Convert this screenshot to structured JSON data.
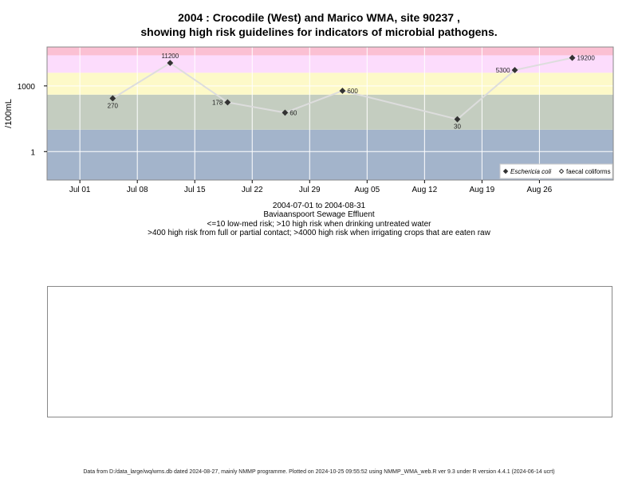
{
  "chart_data": {
    "type": "scatter",
    "title": "2004 : Crocodile (West) and Marico WMA, site 90237 ,",
    "subtitle": "showing high risk guidelines for indicators of microbial pathogens.",
    "ylabel": "/100mL",
    "y_scale": "log",
    "y_ticks": [
      1,
      1000
    ],
    "y_tick_labels": [
      "1",
      "1000"
    ],
    "ylim": [
      0.05,
      60000
    ],
    "x_axis": "date",
    "xlim": [
      "2004-06-27",
      "2004-09-04"
    ],
    "x_ticks": [
      "2004-07-01",
      "2004-07-08",
      "2004-07-15",
      "2004-07-22",
      "2004-07-29",
      "2004-08-05",
      "2004-08-12",
      "2004-08-19",
      "2004-08-26"
    ],
    "x_tick_labels": [
      "Jul 01",
      "Jul 08",
      "Jul 15",
      "Jul 22",
      "Jul 29",
      "Aug 05",
      "Aug 12",
      "Aug 19",
      "Aug 26"
    ],
    "grid": true,
    "bands": [
      {
        "from": 0.05,
        "to": 10,
        "color": "#a3b4cb"
      },
      {
        "from": 10,
        "to": 400,
        "color": "#c4cdc0"
      },
      {
        "from": 400,
        "to": 4000,
        "color": "#fdf9c8"
      },
      {
        "from": 4000,
        "to": 25000,
        "color": "#fcdcfc"
      },
      {
        "from": 25000,
        "to": 60000,
        "color": "#fbc0d3"
      }
    ],
    "series": [
      {
        "name": "Eschericia coli",
        "marker": "filled-diamond",
        "color": "#333333",
        "line_color": "#dddddd",
        "x": [
          "2004-07-05",
          "2004-07-12",
          "2004-07-19",
          "2004-07-26",
          "2004-08-02",
          "2004-08-16",
          "2004-08-23",
          "2004-08-30"
        ],
        "y": [
          270,
          11200,
          178,
          60,
          600,
          30,
          5300,
          19200
        ],
        "labels": [
          "270",
          "11200",
          "178",
          "60",
          "600",
          "30",
          "5300",
          "19200"
        ],
        "label_pos": [
          "below",
          "above",
          "left",
          "right",
          "right",
          "below",
          "left",
          "right"
        ]
      }
    ],
    "legend": {
      "placement": "bottom-right",
      "entries": [
        {
          "label": "Eschericia coli",
          "marker": "filled-diamond",
          "italic": true
        },
        {
          "label": "faecal coliforms",
          "marker": "open-diamond",
          "italic": false
        }
      ]
    }
  },
  "subtitle_lines": {
    "date_range": "2004-07-01 to 2004-08-31",
    "site_name": "Baviaanspoort Sewage Effluent",
    "guideline_1": "<=10 low-med risk; >10 high risk when drinking untreated water",
    "guideline_2": ">400 high risk from full or partial contact; >4000 high risk when irrigating crops that are eaten raw"
  },
  "footer": "Data from D:/data_large/wq/wms.db dated 2024-08-27, mainly NMMP programme. Plotted on 2024-10-25 09:55:52 using NMMP_WMA_web.R ver 9.3 under R version 4.4.1 (2024-06-14 ucrt)"
}
